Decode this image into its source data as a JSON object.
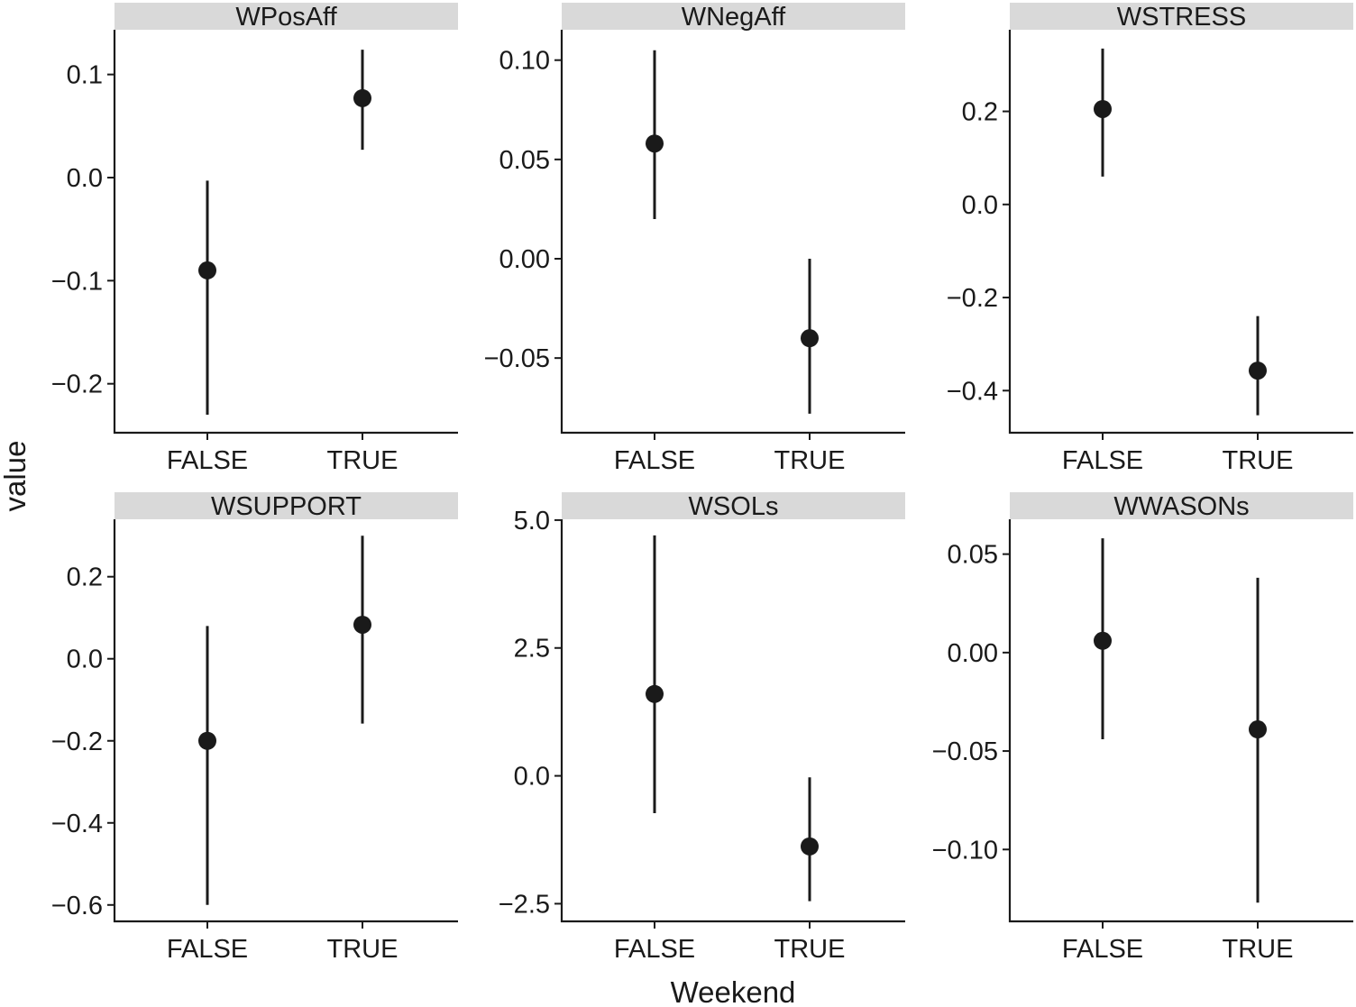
{
  "chart_data": {
    "type": "scatter",
    "style": "point-range facets",
    "xlabel": "Weekend",
    "ylabel": "value",
    "categories": [
      "FALSE",
      "TRUE"
    ],
    "colors": {
      "strip_bg": "#d9d9d9",
      "ink": "#1a1a1a"
    },
    "facets": [
      {
        "name": "WPosAff",
        "yticks": [
          0.1,
          0.0,
          -0.1,
          -0.2
        ],
        "ytick_labels": [
          "0.1",
          "0.0",
          "−0.1",
          "−0.2"
        ],
        "ylim": [
          -0.2475,
          0.1434
        ],
        "points": [
          {
            "x": "FALSE",
            "y": -0.09,
            "ymin": -0.23,
            "ymax": -0.003
          },
          {
            "x": "TRUE",
            "y": 0.077,
            "ymin": 0.027,
            "ymax": 0.124
          }
        ]
      },
      {
        "name": "WNegAff",
        "yticks": [
          0.1,
          0.05,
          0.0,
          -0.05
        ],
        "ytick_labels": [
          "0.10",
          "0.05",
          "0.00",
          "−0.05"
        ],
        "ylim": [
          -0.0876,
          0.1153
        ],
        "points": [
          {
            "x": "FALSE",
            "y": 0.058,
            "ymin": 0.02,
            "ymax": 0.105
          },
          {
            "x": "TRUE",
            "y": -0.04,
            "ymin": -0.078,
            "ymax": 0.0
          }
        ]
      },
      {
        "name": "WSTRESS",
        "yticks": [
          0.2,
          0.0,
          -0.2,
          -0.4
        ],
        "ytick_labels": [
          "0.2",
          "0.0",
          "−0.2",
          "−0.4"
        ],
        "ylim": [
          -0.4905,
          0.3754
        ],
        "points": [
          {
            "x": "FALSE",
            "y": 0.205,
            "ymin": 0.06,
            "ymax": 0.335
          },
          {
            "x": "TRUE",
            "y": -0.357,
            "ymin": -0.453,
            "ymax": -0.24
          }
        ]
      },
      {
        "name": "WSUPPORT",
        "yticks": [
          0.2,
          0.0,
          -0.2,
          -0.4,
          -0.6
        ],
        "ytick_labels": [
          "0.2",
          "0.0",
          "−0.2",
          "−0.4",
          "−0.6"
        ],
        "ylim": [
          -0.64,
          0.34
        ],
        "points": [
          {
            "x": "FALSE",
            "y": -0.2,
            "ymin": -0.6,
            "ymax": 0.08
          },
          {
            "x": "TRUE",
            "y": 0.083,
            "ymin": -0.158,
            "ymax": 0.3
          }
        ]
      },
      {
        "name": "WSOLs",
        "yticks": [
          5.0,
          2.5,
          0.0,
          -2.5
        ],
        "ytick_labels": [
          "5.0",
          "2.5",
          "0.0",
          "−2.5"
        ],
        "ylim": [
          -2.845,
          5.016
        ],
        "points": [
          {
            "x": "FALSE",
            "y": 1.6,
            "ymin": -0.73,
            "ymax": 4.7
          },
          {
            "x": "TRUE",
            "y": -1.38,
            "ymin": -2.45,
            "ymax": -0.03
          }
        ]
      },
      {
        "name": "WWASONs",
        "yticks": [
          0.05,
          0.0,
          -0.05,
          -0.1
        ],
        "ytick_labels": [
          "0.05",
          "0.00",
          "−0.05",
          "−0.10"
        ],
        "ylim": [
          -0.1365,
          0.0677
        ],
        "points": [
          {
            "x": "FALSE",
            "y": 0.006,
            "ymin": -0.044,
            "ymax": 0.058
          },
          {
            "x": "TRUE",
            "y": -0.039,
            "ymin": -0.127,
            "ymax": 0.038
          }
        ]
      }
    ]
  }
}
